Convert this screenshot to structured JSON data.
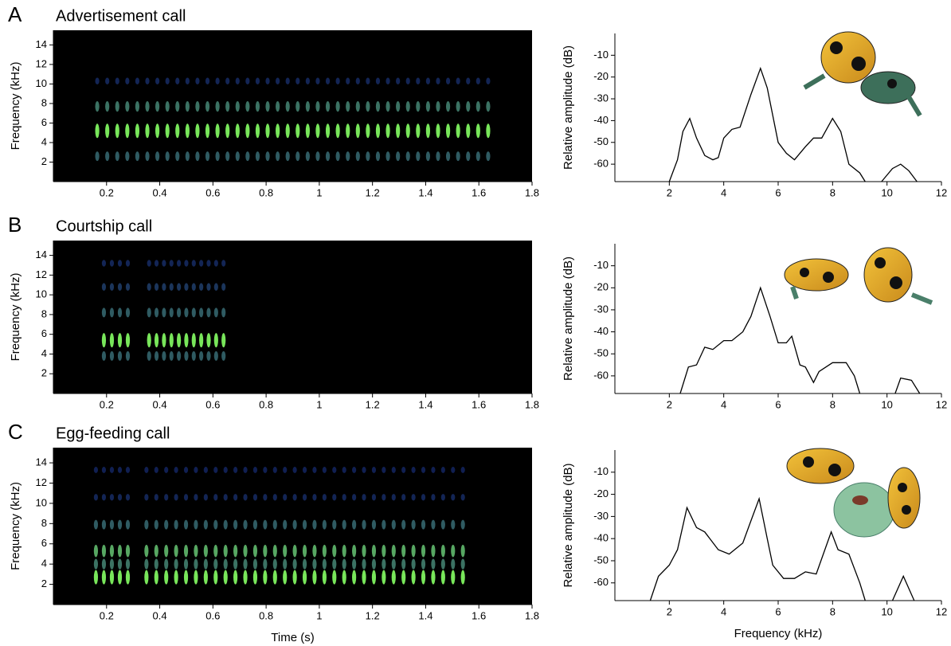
{
  "chart_data": [
    {
      "type": "spectrogram",
      "panel": "A",
      "title": "Advertisement call",
      "ylabel": "Frequency (kHz)",
      "xlim": [
        0,
        1.8
      ],
      "xticks": [
        0.2,
        0.4,
        0.6,
        0.8,
        1,
        1.2,
        1.4,
        1.6,
        1.8
      ],
      "ylim": [
        0,
        15.5
      ],
      "yticks": [
        2,
        4,
        6,
        8,
        10,
        12,
        14
      ],
      "background": "#000000",
      "pulse_trains": [
        {
          "start": 0.165,
          "end": 1.635,
          "count": 40
        }
      ],
      "bands": [
        {
          "freq": 2.6,
          "level": 0.5
        },
        {
          "freq": 5.2,
          "level": 1
        },
        {
          "freq": 7.7,
          "level": 0.6
        },
        {
          "freq": 10.3,
          "level": 0.2
        }
      ]
    },
    {
      "type": "line",
      "ylabel": "Relative amplitude (dB)",
      "xlim": [
        0,
        12
      ],
      "xticks": [
        2,
        4,
        6,
        8,
        10,
        12
      ],
      "ylim": [
        -68,
        0
      ],
      "yticks": [
        -10,
        -20,
        -30,
        -40,
        -50,
        -60
      ],
      "color": "#000000",
      "x": [
        2.0,
        2.3,
        2.5,
        2.75,
        3.0,
        3.3,
        3.6,
        3.8,
        4.0,
        4.3,
        4.6,
        5.0,
        5.35,
        5.6,
        6.0,
        6.3,
        6.6,
        7.0,
        7.3,
        7.6,
        8.0,
        8.3,
        8.6,
        9.0,
        9.2,
        9.5,
        9.8,
        10.2,
        10.5,
        10.8,
        11.1
      ],
      "values": [
        -68,
        -58,
        -45,
        -39,
        -48,
        -56,
        -58,
        -57,
        -48,
        -44,
        -43,
        -28,
        -16,
        -25,
        -50,
        -55,
        -58,
        -52,
        -48,
        -48,
        -39,
        -45,
        -60,
        -64,
        -68,
        null,
        -68,
        -62,
        -60,
        -63,
        -68
      ]
    },
    {
      "type": "spectrogram",
      "panel": "B",
      "title": "Courtship call",
      "ylabel": "Frequency (kHz)",
      "xlim": [
        0,
        1.8
      ],
      "xticks": [
        0.2,
        0.4,
        0.6,
        0.8,
        1,
        1.2,
        1.4,
        1.6,
        1.8
      ],
      "ylim": [
        0,
        15.5
      ],
      "yticks": [
        2,
        4,
        6,
        8,
        10,
        12,
        14
      ],
      "background": "#000000",
      "pulse_trains": [
        {
          "start": 0.19,
          "end": 0.28,
          "count": 4
        },
        {
          "start": 0.36,
          "end": 0.64,
          "count": 11
        }
      ],
      "bands": [
        {
          "freq": 3.8,
          "level": 0.5
        },
        {
          "freq": 5.4,
          "level": 1
        },
        {
          "freq": 8.2,
          "level": 0.5
        },
        {
          "freq": 10.8,
          "level": 0.3
        },
        {
          "freq": 13.2,
          "level": 0.2
        }
      ]
    },
    {
      "type": "line",
      "ylabel": "Relative amplitude (dB)",
      "xlim": [
        0,
        12
      ],
      "xticks": [
        2,
        4,
        6,
        8,
        10,
        12
      ],
      "ylim": [
        -68,
        0
      ],
      "yticks": [
        -10,
        -20,
        -30,
        -40,
        -50,
        -60
      ],
      "color": "#000000",
      "x": [
        2.4,
        2.7,
        3.0,
        3.3,
        3.6,
        4.0,
        4.3,
        4.7,
        5.0,
        5.35,
        5.7,
        6.0,
        6.3,
        6.5,
        6.8,
        7.0,
        7.3,
        7.5,
        8.0,
        8.5,
        8.8,
        9.0,
        9.6,
        10.3,
        10.5,
        10.9,
        11.2
      ],
      "values": [
        -68,
        -56,
        -55,
        -47,
        -48,
        -44,
        -44,
        -40,
        -33,
        -20,
        -33,
        -45,
        -45,
        -42,
        -55,
        -56,
        -63,
        -58,
        -54,
        -54,
        -60,
        -68,
        null,
        -68,
        -61,
        -62,
        -68
      ]
    },
    {
      "type": "spectrogram",
      "panel": "C",
      "title": "Egg-feeding call",
      "ylabel": "Frequency (kHz)",
      "xlabel": "Time (s)",
      "xlim": [
        0,
        1.8
      ],
      "xticks": [
        0.2,
        0.4,
        0.6,
        0.8,
        1,
        1.2,
        1.4,
        1.6,
        1.8
      ],
      "ylim": [
        0,
        15.5
      ],
      "yticks": [
        2,
        4,
        6,
        8,
        10,
        12,
        14
      ],
      "background": "#000000",
      "pulse_trains": [
        {
          "start": 0.16,
          "end": 0.28,
          "count": 5
        },
        {
          "start": 0.35,
          "end": 1.54,
          "count": 33
        }
      ],
      "bands": [
        {
          "freq": 2.7,
          "level": 1
        },
        {
          "freq": 4.0,
          "level": 0.6
        },
        {
          "freq": 5.3,
          "level": 0.8
        },
        {
          "freq": 7.9,
          "level": 0.5
        },
        {
          "freq": 10.6,
          "level": 0.2
        },
        {
          "freq": 13.3,
          "level": 0.15
        }
      ]
    },
    {
      "type": "line",
      "ylabel": "Relative amplitude (dB)",
      "xlabel": "Frequency (kHz)",
      "xlim": [
        0,
        12
      ],
      "xticks": [
        2,
        4,
        6,
        8,
        10,
        12
      ],
      "ylim": [
        -68,
        0
      ],
      "yticks": [
        -10,
        -20,
        -30,
        -40,
        -50,
        -60
      ],
      "color": "#000000",
      "x": [
        1.3,
        1.6,
        2.0,
        2.3,
        2.65,
        3.0,
        3.3,
        3.8,
        4.2,
        4.7,
        5.0,
        5.3,
        5.6,
        5.8,
        6.2,
        6.6,
        7.0,
        7.4,
        7.95,
        8.2,
        8.6,
        9.0,
        9.2,
        9.7,
        10.2,
        10.6,
        11.0
      ],
      "values": [
        -68,
        -57,
        -52,
        -45,
        -26,
        -35,
        -37,
        -45,
        -47,
        -42,
        -32,
        -22,
        -40,
        -52,
        -58,
        -58,
        -55,
        -56,
        -37,
        -45,
        -47,
        -60,
        -68,
        null,
        -68,
        -57,
        -68
      ]
    }
  ]
}
